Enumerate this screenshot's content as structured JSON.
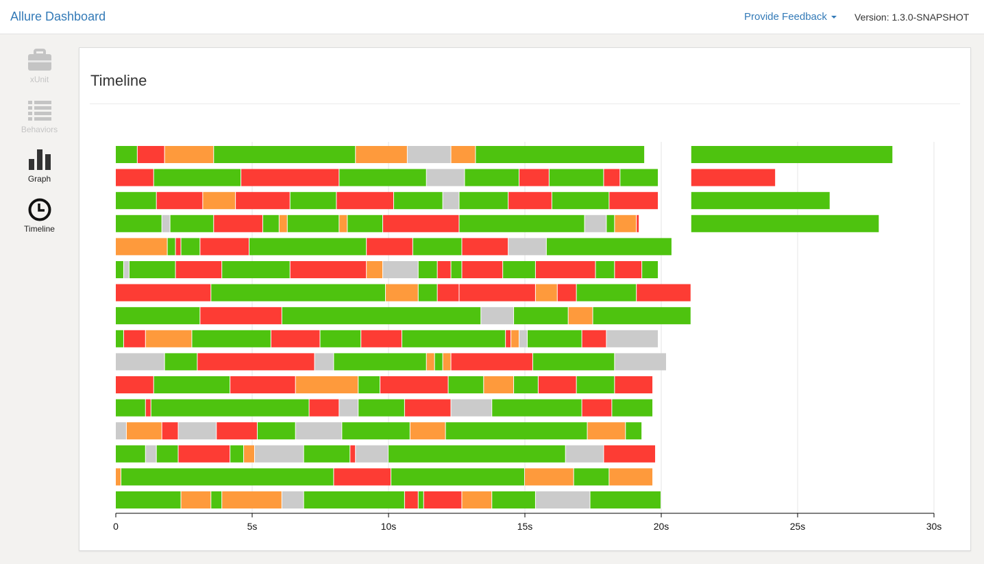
{
  "app": {
    "brand": "Allure Dashboard"
  },
  "header": {
    "feedback_label": "Provide Feedback",
    "version": "Version: 1.3.0-SNAPSHOT"
  },
  "sidebar": {
    "items": [
      {
        "label": "xUnit",
        "icon": "briefcase-icon",
        "enabled": false
      },
      {
        "label": "Behaviors",
        "icon": "list-icon",
        "enabled": false
      },
      {
        "label": "Graph",
        "icon": "bar-chart-icon",
        "enabled": true
      },
      {
        "label": "Timeline",
        "icon": "clock-icon",
        "enabled": true
      }
    ]
  },
  "main": {
    "title": "Timeline"
  },
  "colors": {
    "passed": "#4ec30f",
    "failed": "#fd3c34",
    "broken": "#fe9a3c",
    "skipped": "#cbcbcb",
    "link": "#337ab7"
  },
  "chart_data": {
    "type": "timeline",
    "x_unit": "s",
    "xlim": [
      0,
      30
    ],
    "x_ticks": [
      0,
      5,
      10,
      15,
      20,
      25,
      30
    ],
    "x_tick_labels": [
      "0",
      "5s",
      "10s",
      "15s",
      "20s",
      "25s",
      "30s"
    ],
    "grid": "vertical",
    "status_key": {
      "p": "passed",
      "f": "failed",
      "b": "broken",
      "s": "skipped"
    },
    "rows": [
      {
        "tests": [
          [
            0.0,
            0.8,
            "p"
          ],
          [
            0.8,
            1.8,
            "f"
          ],
          [
            1.8,
            3.6,
            "b"
          ],
          [
            3.6,
            8.8,
            "p"
          ],
          [
            8.8,
            10.7,
            "b"
          ],
          [
            10.7,
            12.3,
            "s"
          ],
          [
            12.3,
            13.2,
            "b"
          ],
          [
            13.2,
            19.4,
            "p"
          ],
          [
            21.1,
            28.5,
            "p"
          ]
        ]
      },
      {
        "tests": [
          [
            0.0,
            1.4,
            "f"
          ],
          [
            1.4,
            4.6,
            "p"
          ],
          [
            4.6,
            8.2,
            "f"
          ],
          [
            8.2,
            11.4,
            "p"
          ],
          [
            11.4,
            12.8,
            "s"
          ],
          [
            12.8,
            14.8,
            "p"
          ],
          [
            14.8,
            15.9,
            "f"
          ],
          [
            15.9,
            17.9,
            "p"
          ],
          [
            17.9,
            18.5,
            "f"
          ],
          [
            18.5,
            19.9,
            "p"
          ],
          [
            21.1,
            24.2,
            "f"
          ]
        ]
      },
      {
        "tests": [
          [
            0.0,
            1.5,
            "p"
          ],
          [
            1.5,
            3.2,
            "f"
          ],
          [
            3.2,
            4.4,
            "b"
          ],
          [
            4.4,
            6.4,
            "f"
          ],
          [
            6.4,
            8.1,
            "p"
          ],
          [
            8.1,
            10.2,
            "f"
          ],
          [
            10.2,
            12.0,
            "p"
          ],
          [
            12.0,
            12.6,
            "s"
          ],
          [
            12.6,
            14.4,
            "p"
          ],
          [
            14.4,
            16.0,
            "f"
          ],
          [
            16.0,
            18.1,
            "p"
          ],
          [
            18.1,
            19.9,
            "f"
          ],
          [
            21.1,
            26.2,
            "p"
          ]
        ]
      },
      {
        "tests": [
          [
            0.0,
            1.7,
            "p"
          ],
          [
            1.7,
            2.0,
            "s"
          ],
          [
            2.0,
            3.6,
            "p"
          ],
          [
            3.6,
            5.4,
            "f"
          ],
          [
            5.4,
            6.0,
            "p"
          ],
          [
            6.0,
            6.3,
            "b"
          ],
          [
            6.3,
            8.2,
            "p"
          ],
          [
            8.2,
            8.5,
            "b"
          ],
          [
            8.5,
            9.8,
            "p"
          ],
          [
            9.8,
            12.6,
            "f"
          ],
          [
            12.6,
            17.2,
            "p"
          ],
          [
            17.2,
            18.0,
            "s"
          ],
          [
            18.0,
            18.3,
            "p"
          ],
          [
            18.3,
            19.1,
            "b"
          ],
          [
            19.1,
            19.2,
            "f"
          ],
          [
            21.1,
            28.0,
            "p"
          ]
        ]
      },
      {
        "tests": [
          [
            0.0,
            1.9,
            "b"
          ],
          [
            1.9,
            2.2,
            "p"
          ],
          [
            2.2,
            2.4,
            "f"
          ],
          [
            2.4,
            3.1,
            "p"
          ],
          [
            3.1,
            4.9,
            "f"
          ],
          [
            4.9,
            9.2,
            "p"
          ],
          [
            9.2,
            10.9,
            "f"
          ],
          [
            10.9,
            12.7,
            "p"
          ],
          [
            12.7,
            14.4,
            "f"
          ],
          [
            14.4,
            15.8,
            "s"
          ],
          [
            15.8,
            20.4,
            "p"
          ]
        ]
      },
      {
        "tests": [
          [
            0.0,
            0.3,
            "p"
          ],
          [
            0.3,
            0.5,
            "s"
          ],
          [
            0.5,
            2.2,
            "p"
          ],
          [
            2.2,
            3.9,
            "f"
          ],
          [
            3.9,
            6.4,
            "p"
          ],
          [
            6.4,
            9.2,
            "f"
          ],
          [
            9.2,
            9.8,
            "b"
          ],
          [
            9.8,
            11.1,
            "s"
          ],
          [
            11.1,
            11.8,
            "p"
          ],
          [
            11.8,
            12.3,
            "f"
          ],
          [
            12.3,
            12.7,
            "p"
          ],
          [
            12.7,
            14.2,
            "f"
          ],
          [
            14.2,
            15.4,
            "p"
          ],
          [
            15.4,
            17.6,
            "f"
          ],
          [
            17.6,
            18.3,
            "p"
          ],
          [
            18.3,
            19.3,
            "f"
          ],
          [
            19.3,
            19.9,
            "p"
          ]
        ]
      },
      {
        "tests": [
          [
            0.0,
            3.5,
            "f"
          ],
          [
            3.5,
            9.9,
            "p"
          ],
          [
            9.9,
            11.1,
            "b"
          ],
          [
            11.1,
            11.8,
            "p"
          ],
          [
            11.8,
            12.6,
            "f"
          ],
          [
            12.6,
            15.4,
            "f"
          ],
          [
            15.4,
            16.2,
            "b"
          ],
          [
            16.2,
            16.9,
            "f"
          ],
          [
            16.9,
            19.1,
            "p"
          ],
          [
            19.1,
            21.1,
            "f"
          ]
        ]
      },
      {
        "tests": [
          [
            0.0,
            3.1,
            "p"
          ],
          [
            3.1,
            6.1,
            "f"
          ],
          [
            6.1,
            13.4,
            "p"
          ],
          [
            13.4,
            14.6,
            "s"
          ],
          [
            14.6,
            16.6,
            "p"
          ],
          [
            16.6,
            17.5,
            "b"
          ],
          [
            17.5,
            21.1,
            "p"
          ]
        ]
      },
      {
        "tests": [
          [
            0.0,
            0.3,
            "p"
          ],
          [
            0.3,
            1.1,
            "f"
          ],
          [
            1.1,
            2.8,
            "b"
          ],
          [
            2.8,
            5.7,
            "p"
          ],
          [
            5.7,
            7.5,
            "f"
          ],
          [
            7.5,
            9.0,
            "p"
          ],
          [
            9.0,
            10.5,
            "f"
          ],
          [
            10.5,
            14.3,
            "p"
          ],
          [
            14.3,
            14.5,
            "f"
          ],
          [
            14.5,
            14.8,
            "b"
          ],
          [
            14.8,
            15.1,
            "s"
          ],
          [
            15.1,
            17.1,
            "p"
          ],
          [
            17.1,
            18.0,
            "f"
          ],
          [
            18.0,
            19.9,
            "s"
          ]
        ]
      },
      {
        "tests": [
          [
            0.0,
            1.8,
            "s"
          ],
          [
            1.8,
            3.0,
            "p"
          ],
          [
            3.0,
            7.3,
            "f"
          ],
          [
            7.3,
            8.0,
            "s"
          ],
          [
            8.0,
            11.4,
            "p"
          ],
          [
            11.4,
            11.7,
            "b"
          ],
          [
            11.7,
            12.0,
            "p"
          ],
          [
            12.0,
            12.3,
            "b"
          ],
          [
            12.3,
            15.3,
            "f"
          ],
          [
            15.3,
            18.3,
            "p"
          ],
          [
            18.3,
            20.2,
            "s"
          ]
        ]
      },
      {
        "tests": [
          [
            0.0,
            1.4,
            "f"
          ],
          [
            1.4,
            4.2,
            "p"
          ],
          [
            4.2,
            6.6,
            "f"
          ],
          [
            6.6,
            8.9,
            "b"
          ],
          [
            8.9,
            9.7,
            "p"
          ],
          [
            9.7,
            12.2,
            "f"
          ],
          [
            12.2,
            13.5,
            "p"
          ],
          [
            13.5,
            14.6,
            "b"
          ],
          [
            14.6,
            15.5,
            "p"
          ],
          [
            15.5,
            16.9,
            "f"
          ],
          [
            16.9,
            18.3,
            "p"
          ],
          [
            18.3,
            19.7,
            "f"
          ]
        ]
      },
      {
        "tests": [
          [
            0.0,
            1.1,
            "p"
          ],
          [
            1.1,
            1.3,
            "f"
          ],
          [
            1.3,
            7.1,
            "p"
          ],
          [
            7.1,
            8.2,
            "f"
          ],
          [
            8.2,
            8.9,
            "s"
          ],
          [
            8.9,
            10.6,
            "p"
          ],
          [
            10.6,
            12.3,
            "f"
          ],
          [
            12.3,
            13.8,
            "s"
          ],
          [
            13.8,
            17.1,
            "p"
          ],
          [
            17.1,
            18.2,
            "f"
          ],
          [
            18.2,
            19.7,
            "p"
          ]
        ]
      },
      {
        "tests": [
          [
            0.0,
            0.4,
            "s"
          ],
          [
            0.4,
            1.7,
            "b"
          ],
          [
            1.7,
            2.3,
            "f"
          ],
          [
            2.3,
            3.7,
            "s"
          ],
          [
            3.7,
            5.2,
            "f"
          ],
          [
            5.2,
            6.6,
            "p"
          ],
          [
            6.6,
            8.3,
            "s"
          ],
          [
            8.3,
            10.8,
            "p"
          ],
          [
            10.8,
            12.1,
            "b"
          ],
          [
            12.1,
            17.3,
            "p"
          ],
          [
            17.3,
            18.7,
            "b"
          ],
          [
            18.7,
            19.3,
            "p"
          ]
        ]
      },
      {
        "tests": [
          [
            0.0,
            1.1,
            "p"
          ],
          [
            1.1,
            1.5,
            "s"
          ],
          [
            1.5,
            2.3,
            "p"
          ],
          [
            2.3,
            4.2,
            "f"
          ],
          [
            4.2,
            4.7,
            "p"
          ],
          [
            4.7,
            5.1,
            "b"
          ],
          [
            5.1,
            6.9,
            "s"
          ],
          [
            6.9,
            8.6,
            "p"
          ],
          [
            8.6,
            8.8,
            "f"
          ],
          [
            8.8,
            10.0,
            "s"
          ],
          [
            10.0,
            16.5,
            "p"
          ],
          [
            16.5,
            17.9,
            "s"
          ],
          [
            17.9,
            19.8,
            "f"
          ]
        ]
      },
      {
        "tests": [
          [
            0.0,
            0.2,
            "b"
          ],
          [
            0.2,
            8.0,
            "p"
          ],
          [
            8.0,
            10.1,
            "f"
          ],
          [
            10.1,
            15.0,
            "p"
          ],
          [
            15.0,
            16.8,
            "b"
          ],
          [
            16.8,
            18.1,
            "p"
          ],
          [
            18.1,
            19.7,
            "b"
          ]
        ]
      },
      {
        "tests": [
          [
            0.0,
            2.4,
            "p"
          ],
          [
            2.4,
            3.5,
            "b"
          ],
          [
            3.5,
            3.9,
            "p"
          ],
          [
            3.9,
            6.1,
            "b"
          ],
          [
            6.1,
            6.9,
            "s"
          ],
          [
            6.9,
            10.6,
            "p"
          ],
          [
            10.6,
            11.1,
            "f"
          ],
          [
            11.1,
            11.3,
            "p"
          ],
          [
            11.3,
            12.7,
            "f"
          ],
          [
            12.7,
            13.8,
            "b"
          ],
          [
            13.8,
            15.4,
            "p"
          ],
          [
            15.4,
            17.4,
            "s"
          ],
          [
            17.4,
            20.0,
            "p"
          ]
        ]
      }
    ]
  }
}
